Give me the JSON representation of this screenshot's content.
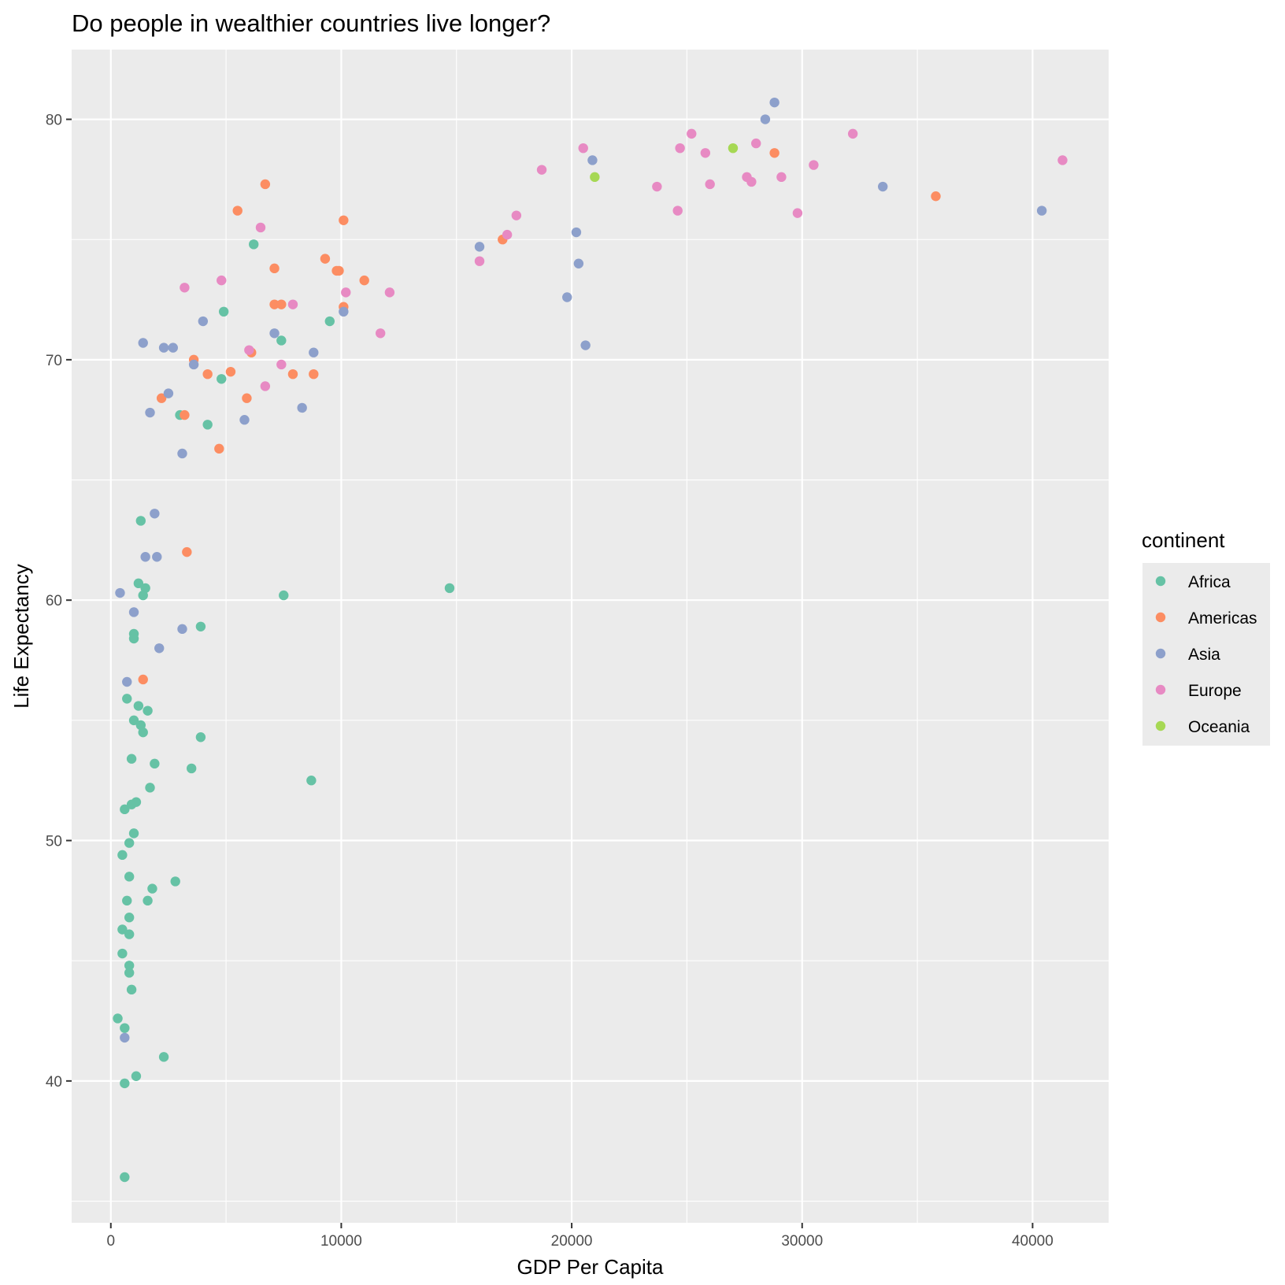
{
  "chart_data": {
    "type": "scatter",
    "title": "Do people in wealthier countries live longer?",
    "xlabel": "GDP Per Capita",
    "ylabel": "Life Expectancy",
    "xlim": [
      -1700,
      43300
    ],
    "ylim": [
      34.1,
      82.9
    ],
    "x_ticks": [
      0,
      10000,
      20000,
      30000,
      40000
    ],
    "x_tick_labels": [
      "0",
      "10000",
      "20000",
      "30000",
      "40000"
    ],
    "x_minor_ticks": [
      5000,
      15000,
      25000,
      35000
    ],
    "y_ticks": [
      40,
      50,
      60,
      70,
      80
    ],
    "y_tick_labels": [
      "40",
      "50",
      "60",
      "70",
      "80"
    ],
    "y_minor_ticks": [
      35,
      45,
      55,
      65,
      75
    ],
    "grid": true,
    "legend": {
      "title": "continent",
      "position": "right",
      "entries": [
        "Africa",
        "Americas",
        "Asia",
        "Europe",
        "Oceania"
      ]
    },
    "colors": {
      "Africa": "#66c2a5",
      "Americas": "#fc8d62",
      "Asia": "#8da0cb",
      "Europe": "#e78ac3",
      "Oceania": "#a6d854",
      "panel": "#ebebeb",
      "grid": "#ffffff"
    },
    "series": [
      {
        "name": "Africa",
        "points": [
          [
            6200,
            74.8
          ],
          [
            4900,
            72.0
          ],
          [
            9500,
            71.6
          ],
          [
            7400,
            70.8
          ],
          [
            4800,
            69.2
          ],
          [
            3000,
            67.7
          ],
          [
            4200,
            67.3
          ],
          [
            1300,
            63.3
          ],
          [
            1200,
            60.7
          ],
          [
            1500,
            60.5
          ],
          [
            1400,
            60.2
          ],
          [
            7500,
            60.2
          ],
          [
            14700,
            60.5
          ],
          [
            3900,
            58.9
          ],
          [
            1000,
            58.6
          ],
          [
            1000,
            58.4
          ],
          [
            700,
            55.9
          ],
          [
            1200,
            55.6
          ],
          [
            1600,
            55.4
          ],
          [
            1000,
            55.0
          ],
          [
            1300,
            54.8
          ],
          [
            1400,
            54.5
          ],
          [
            3900,
            54.3
          ],
          [
            900,
            53.4
          ],
          [
            1900,
            53.2
          ],
          [
            3500,
            53.0
          ],
          [
            8700,
            52.5
          ],
          [
            1700,
            52.2
          ],
          [
            1100,
            51.6
          ],
          [
            900,
            51.5
          ],
          [
            600,
            51.3
          ],
          [
            1000,
            50.3
          ],
          [
            800,
            49.9
          ],
          [
            500,
            49.4
          ],
          [
            800,
            48.5
          ],
          [
            2800,
            48.3
          ],
          [
            1800,
            48.0
          ],
          [
            700,
            47.5
          ],
          [
            1600,
            47.5
          ],
          [
            800,
            46.8
          ],
          [
            500,
            46.3
          ],
          [
            800,
            46.1
          ],
          [
            500,
            45.3
          ],
          [
            800,
            44.8
          ],
          [
            800,
            44.5
          ],
          [
            900,
            43.8
          ],
          [
            300,
            42.6
          ],
          [
            600,
            42.2
          ],
          [
            2300,
            41.0
          ],
          [
            1100,
            40.2
          ],
          [
            600,
            39.9
          ],
          [
            600,
            36.0
          ]
        ]
      },
      {
        "name": "Americas",
        "points": [
          [
            6700,
            77.3
          ],
          [
            5500,
            76.2
          ],
          [
            10100,
            75.8
          ],
          [
            17000,
            75.0
          ],
          [
            9300,
            74.2
          ],
          [
            7100,
            73.8
          ],
          [
            9800,
            73.7
          ],
          [
            9900,
            73.7
          ],
          [
            11000,
            73.3
          ],
          [
            7100,
            72.3
          ],
          [
            7400,
            72.3
          ],
          [
            10100,
            72.2
          ],
          [
            3600,
            70.0
          ],
          [
            6100,
            70.3
          ],
          [
            5200,
            69.5
          ],
          [
            4200,
            69.4
          ],
          [
            7900,
            69.4
          ],
          [
            8800,
            69.4
          ],
          [
            2200,
            68.4
          ],
          [
            5900,
            68.4
          ],
          [
            3200,
            67.7
          ],
          [
            4700,
            66.3
          ],
          [
            3300,
            62.0
          ],
          [
            1400,
            56.7
          ],
          [
            28800,
            78.6
          ],
          [
            35800,
            76.8
          ]
        ]
      },
      {
        "name": "Asia",
        "points": [
          [
            28800,
            80.7
          ],
          [
            28400,
            80.0
          ],
          [
            20900,
            78.3
          ],
          [
            33500,
            77.2
          ],
          [
            40400,
            76.2
          ],
          [
            20200,
            75.3
          ],
          [
            16000,
            74.7
          ],
          [
            20300,
            74.0
          ],
          [
            19800,
            72.6
          ],
          [
            10100,
            72.0
          ],
          [
            4000,
            71.6
          ],
          [
            7100,
            71.1
          ],
          [
            1400,
            70.7
          ],
          [
            20600,
            70.6
          ],
          [
            2300,
            70.5
          ],
          [
            2700,
            70.5
          ],
          [
            8800,
            70.3
          ],
          [
            3600,
            69.8
          ],
          [
            2500,
            68.6
          ],
          [
            8300,
            68.0
          ],
          [
            1700,
            67.8
          ],
          [
            5800,
            67.5
          ],
          [
            3100,
            66.1
          ],
          [
            1900,
            63.6
          ],
          [
            1500,
            61.8
          ],
          [
            2000,
            61.8
          ],
          [
            400,
            60.3
          ],
          [
            1000,
            59.5
          ],
          [
            3100,
            58.8
          ],
          [
            2100,
            58.0
          ],
          [
            700,
            56.6
          ],
          [
            600,
            41.8
          ]
        ]
      },
      {
        "name": "Europe",
        "points": [
          [
            25200,
            79.4
          ],
          [
            32200,
            79.4
          ],
          [
            28000,
            79.0
          ],
          [
            24700,
            78.8
          ],
          [
            20500,
            78.8
          ],
          [
            25800,
            78.6
          ],
          [
            41300,
            78.3
          ],
          [
            30500,
            78.1
          ],
          [
            18700,
            77.9
          ],
          [
            27600,
            77.6
          ],
          [
            29100,
            77.6
          ],
          [
            27800,
            77.4
          ],
          [
            23700,
            77.2
          ],
          [
            26000,
            77.3
          ],
          [
            24600,
            76.2
          ],
          [
            29800,
            76.1
          ],
          [
            17600,
            76.0
          ],
          [
            6500,
            75.5
          ],
          [
            17200,
            75.2
          ],
          [
            16000,
            74.1
          ],
          [
            4800,
            73.3
          ],
          [
            3200,
            73.0
          ],
          [
            10200,
            72.8
          ],
          [
            12100,
            72.8
          ],
          [
            7900,
            72.3
          ],
          [
            11700,
            71.1
          ],
          [
            6000,
            70.4
          ],
          [
            7400,
            69.8
          ],
          [
            6700,
            68.9
          ]
        ]
      },
      {
        "name": "Oceania",
        "points": [
          [
            27000,
            78.8
          ],
          [
            21000,
            77.6
          ]
        ]
      }
    ]
  }
}
